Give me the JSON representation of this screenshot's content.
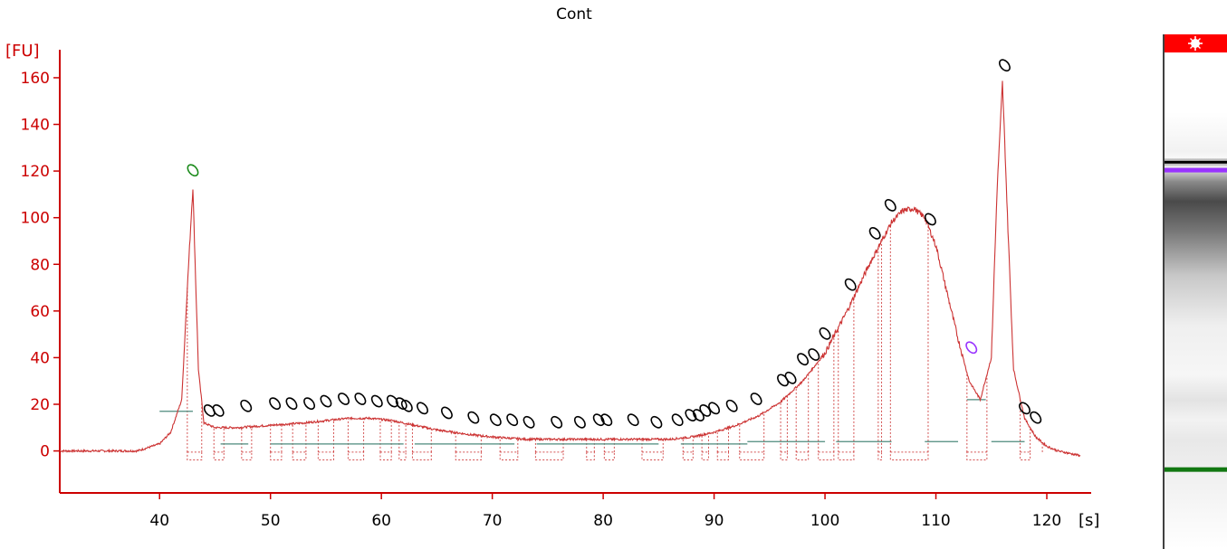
{
  "chart_data": {
    "type": "line",
    "title": "Cont",
    "xlabel": "[s]",
    "ylabel": "[FU]",
    "xlim": [
      31,
      124
    ],
    "ylim": [
      -18,
      172
    ],
    "xticks": [
      40,
      50,
      60,
      70,
      80,
      90,
      100,
      110,
      120
    ],
    "yticks": [
      0,
      20,
      40,
      60,
      80,
      100,
      120,
      140,
      160
    ],
    "grid": false,
    "trace_color": "#cc3333",
    "axis_color": "#cc0000",
    "trace": {
      "x": [
        31,
        35,
        38,
        40,
        41,
        42,
        42.5,
        43,
        43.5,
        44,
        45,
        47,
        50,
        53,
        55,
        57,
        59,
        61,
        63,
        65,
        68,
        70,
        73,
        76,
        80,
        84,
        86,
        88,
        90,
        92,
        94,
        96,
        98,
        100,
        102,
        104,
        106,
        107,
        108,
        109,
        110,
        111,
        112,
        113,
        114,
        115,
        115.5,
        116,
        116.5,
        117,
        118,
        119,
        120,
        121,
        122,
        123
      ],
      "y": [
        0,
        0,
        0,
        3,
        8,
        22,
        70,
        113,
        35,
        12,
        10,
        10,
        11,
        12,
        13,
        14,
        14,
        13,
        11,
        9,
        7,
        6,
        5,
        5,
        5,
        5,
        5,
        6,
        8,
        11,
        15,
        21,
        30,
        42,
        60,
        80,
        98,
        103,
        104,
        100,
        88,
        68,
        48,
        30,
        22,
        40,
        110,
        158,
        95,
        35,
        14,
        6,
        2,
        0,
        -1,
        -2
      ]
    },
    "peaks": {
      "ladder_marker": {
        "x": 43,
        "y": 118,
        "label": "0",
        "color": "#1a8a1a"
      },
      "upper_marker": {
        "x": 113.2,
        "y": 42,
        "label": "0",
        "color": "#9933ff"
      },
      "others": [
        [
          44.5,
          15
        ],
        [
          45.3,
          15
        ],
        [
          47.8,
          17
        ],
        [
          50.4,
          18
        ],
        [
          51.9,
          18
        ],
        [
          53.5,
          18
        ],
        [
          55,
          19
        ],
        [
          56.6,
          20
        ],
        [
          58.1,
          20
        ],
        [
          59.6,
          19
        ],
        [
          61,
          19
        ],
        [
          61.8,
          18
        ],
        [
          62.3,
          17
        ],
        [
          63.7,
          16
        ],
        [
          65.9,
          14
        ],
        [
          68.3,
          12
        ],
        [
          70.3,
          11
        ],
        [
          71.8,
          11
        ],
        [
          73.3,
          10
        ],
        [
          75.8,
          10
        ],
        [
          77.9,
          10
        ],
        [
          79.6,
          11
        ],
        [
          80.3,
          11
        ],
        [
          82.7,
          11
        ],
        [
          84.8,
          10
        ],
        [
          86.7,
          11
        ],
        [
          87.9,
          13
        ],
        [
          88.6,
          13
        ],
        [
          89.2,
          15
        ],
        [
          90,
          16
        ],
        [
          91.6,
          17
        ],
        [
          93.8,
          20
        ],
        [
          96.2,
          28
        ],
        [
          96.9,
          29
        ],
        [
          98,
          37
        ],
        [
          99,
          39
        ],
        [
          100,
          48
        ],
        [
          102.3,
          69
        ],
        [
          104.5,
          91
        ],
        [
          105.9,
          103
        ],
        [
          109.5,
          97
        ],
        [
          118,
          16
        ],
        [
          119,
          12
        ]
      ],
      "label": "0"
    },
    "baseline_segments": [
      [
        40,
        43,
        17
      ],
      [
        112.8,
        114.5,
        22
      ],
      [
        45.5,
        48,
        3
      ],
      [
        50,
        53,
        3
      ],
      [
        53,
        62,
        3
      ],
      [
        63,
        72,
        3
      ],
      [
        74,
        85,
        3
      ],
      [
        87,
        93,
        3
      ],
      [
        93,
        100,
        4
      ],
      [
        101,
        106,
        4
      ],
      [
        109,
        112,
        4
      ],
      [
        115,
        118,
        4
      ]
    ],
    "peak_boundaries": [
      42.5,
      43.8,
      44.9,
      45.8,
      47.4,
      48.3,
      50,
      51,
      52,
      53.2,
      54.3,
      55.7,
      57,
      58.4,
      59.9,
      60.9,
      61.6,
      62.2,
      62.8,
      64.5,
      66.7,
      69,
      70.7,
      72.3,
      73.9,
      76.4,
      78.5,
      79.2,
      80.1,
      81,
      83.5,
      85.4,
      87.2,
      88.1,
      88.9,
      89.5,
      90.3,
      91.3,
      92.3,
      94.5,
      96,
      96.6,
      97.4,
      98.5,
      99.4,
      100.8,
      101.2,
      102.6,
      104.8,
      105.1,
      105.9,
      109.3,
      112.8,
      114.6,
      117.6,
      118.5,
      119.6
    ]
  },
  "gel": {
    "bands": [
      {
        "pos": 0.221,
        "color": "#000000",
        "kind": "sharp"
      },
      {
        "pos": 0.237,
        "color": "#9933ff",
        "kind": "marker"
      },
      {
        "pos": 0.84,
        "color": "#117711",
        "kind": "marker"
      }
    ],
    "header_color": "#ff0000"
  }
}
